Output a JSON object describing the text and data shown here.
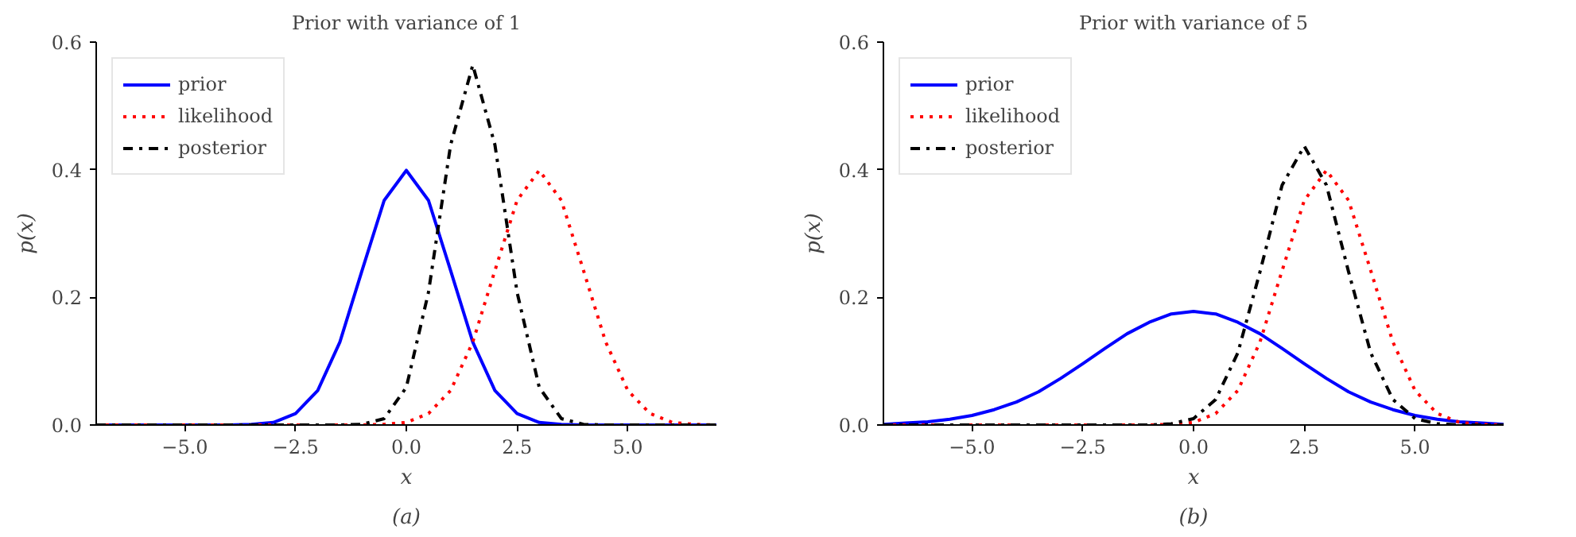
{
  "chart_data": [
    {
      "type": "line",
      "title": "Prior with variance of 1",
      "xlabel": "x",
      "ylabel": "p(x)",
      "annotations": [
        "(a)"
      ],
      "x": [
        -7,
        -6.5,
        -6,
        -5.5,
        -5,
        -4.5,
        -4,
        -3.5,
        -3,
        -2.5,
        -2,
        -1.5,
        -1,
        -0.5,
        0,
        0.5,
        1,
        1.5,
        2,
        2.5,
        3,
        3.5,
        4,
        4.5,
        5,
        5.5,
        6,
        6.5,
        7
      ],
      "series": [
        {
          "name": "prior",
          "color": "#0000ff",
          "line_style": "solid",
          "values": [
            0,
            0,
            0,
            0,
            0,
            0,
            0,
            0.001,
            0.004,
            0.018,
            0.054,
            0.13,
            0.242,
            0.352,
            0.399,
            0.352,
            0.242,
            0.13,
            0.054,
            0.018,
            0.004,
            0.001,
            0,
            0,
            0,
            0,
            0,
            0,
            0
          ]
        },
        {
          "name": "likelihood",
          "color": "#ff0000",
          "line_style": "dotted",
          "values": [
            0,
            0,
            0,
            0,
            0,
            0,
            0,
            0,
            0,
            0,
            0,
            0,
            0,
            0.001,
            0.004,
            0.018,
            0.054,
            0.13,
            0.242,
            0.352,
            0.399,
            0.352,
            0.242,
            0.13,
            0.054,
            0.018,
            0.004,
            0.001,
            0
          ]
        },
        {
          "name": "posterior",
          "color": "#000000",
          "line_style": "dashdot",
          "values": [
            0,
            0,
            0,
            0,
            0,
            0,
            0,
            0,
            0,
            0,
            0,
            0,
            0.001,
            0.01,
            0.059,
            0.208,
            0.439,
            0.564,
            0.439,
            0.208,
            0.059,
            0.01,
            0.001,
            0,
            0,
            0,
            0,
            0,
            0
          ]
        }
      ],
      "xlim": [
        -7,
        7
      ],
      "ylim": [
        0,
        0.6
      ],
      "xticks": [
        {
          "value": -5,
          "label": "−5.0"
        },
        {
          "value": -2.5,
          "label": "−2.5"
        },
        {
          "value": 0,
          "label": "0.0"
        },
        {
          "value": 2.5,
          "label": "2.5"
        },
        {
          "value": 5,
          "label": "5.0"
        }
      ],
      "yticks": [
        {
          "value": 0,
          "label": "0.0"
        },
        {
          "value": 0.2,
          "label": "0.2"
        },
        {
          "value": 0.4,
          "label": "0.4"
        },
        {
          "value": 0.6,
          "label": "0.6"
        }
      ],
      "grid": false,
      "legend": "top left"
    },
    {
      "type": "line",
      "title": "Prior with variance of 5",
      "xlabel": "x",
      "ylabel": "p(x)",
      "annotations": [
        "(b)"
      ],
      "x": [
        -7,
        -6.5,
        -6,
        -5.5,
        -5,
        -4.5,
        -4,
        -3.5,
        -3,
        -2.5,
        -2,
        -1.5,
        -1,
        -0.5,
        0,
        0.5,
        1,
        1.5,
        2,
        2.5,
        3,
        3.5,
        4,
        4.5,
        5,
        5.5,
        6,
        6.5,
        7
      ],
      "series": [
        {
          "name": "prior",
          "color": "#0000ff",
          "line_style": "solid",
          "values": [
            0.001,
            0.003,
            0.005,
            0.009,
            0.015,
            0.024,
            0.036,
            0.052,
            0.073,
            0.096,
            0.12,
            0.143,
            0.161,
            0.174,
            0.178,
            0.174,
            0.161,
            0.143,
            0.12,
            0.096,
            0.073,
            0.052,
            0.036,
            0.024,
            0.015,
            0.009,
            0.005,
            0.003,
            0.001
          ]
        },
        {
          "name": "likelihood",
          "color": "#ff0000",
          "line_style": "dotted",
          "values": [
            0,
            0,
            0,
            0,
            0,
            0,
            0,
            0,
            0,
            0,
            0,
            0,
            0,
            0.001,
            0.004,
            0.018,
            0.054,
            0.13,
            0.242,
            0.352,
            0.399,
            0.352,
            0.242,
            0.13,
            0.054,
            0.018,
            0.004,
            0.001,
            0
          ]
        },
        {
          "name": "posterior",
          "color": "#000000",
          "line_style": "dashdot",
          "values": [
            0,
            0,
            0,
            0,
            0,
            0,
            0,
            0,
            0,
            0,
            0,
            0,
            0,
            0.002,
            0.01,
            0.04,
            0.113,
            0.24,
            0.376,
            0.437,
            0.376,
            0.24,
            0.113,
            0.04,
            0.01,
            0.002,
            0,
            0,
            0
          ]
        }
      ],
      "xlim": [
        -7,
        7
      ],
      "ylim": [
        0,
        0.6
      ],
      "xticks": [
        {
          "value": -5,
          "label": "−5.0"
        },
        {
          "value": -2.5,
          "label": "−2.5"
        },
        {
          "value": 0,
          "label": "0.0"
        },
        {
          "value": 2.5,
          "label": "2.5"
        },
        {
          "value": 5,
          "label": "5.0"
        }
      ],
      "yticks": [
        {
          "value": 0,
          "label": "0.0"
        },
        {
          "value": 0.2,
          "label": "0.2"
        },
        {
          "value": 0.4,
          "label": "0.4"
        },
        {
          "value": 0.6,
          "label": "0.6"
        }
      ],
      "grid": false,
      "legend": "top left"
    }
  ]
}
